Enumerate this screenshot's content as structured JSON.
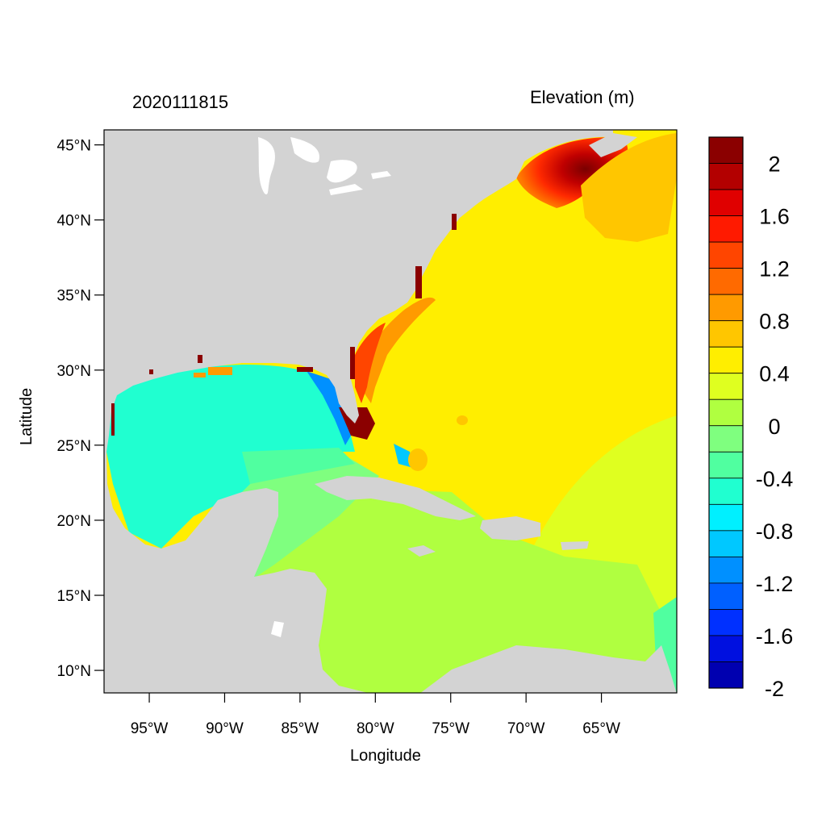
{
  "header": {
    "timestamp": "2020111815",
    "variable": "Elevation (m)"
  },
  "axes": {
    "xlabel": "Longitude",
    "ylabel": "Latitude",
    "lat_ticks": [
      {
        "label": "45°N",
        "value": 45
      },
      {
        "label": "40°N",
        "value": 40
      },
      {
        "label": "35°N",
        "value": 35
      },
      {
        "label": "30°N",
        "value": 30
      },
      {
        "label": "25°N",
        "value": 25
      },
      {
        "label": "20°N",
        "value": 20
      },
      {
        "label": "15°N",
        "value": 15
      },
      {
        "label": "10°N",
        "value": 10
      }
    ],
    "lon_ticks": [
      {
        "label": "95°W",
        "value": -95
      },
      {
        "label": "90°W",
        "value": -90
      },
      {
        "label": "85°W",
        "value": -85
      },
      {
        "label": "80°W",
        "value": -80
      },
      {
        "label": "75°W",
        "value": -75
      },
      {
        "label": "70°W",
        "value": -70
      },
      {
        "label": "65°W",
        "value": -65
      }
    ],
    "lon_range": [
      -98,
      -60
    ],
    "lat_range": [
      8.5,
      46
    ]
  },
  "colorbar": {
    "colors": [
      "#8b0000",
      "#b30000",
      "#e00000",
      "#ff1a00",
      "#ff4500",
      "#ff6a00",
      "#ff9a00",
      "#ffc600",
      "#ffee00",
      "#dfff20",
      "#b0ff40",
      "#7fff7f",
      "#50ffa0",
      "#20ffd0",
      "#00f0ff",
      "#00c8ff",
      "#0090ff",
      "#0060ff",
      "#0030ff",
      "#0010e0",
      "#0000b0"
    ],
    "labels": [
      "2",
      "1.6",
      "1.2",
      "0.8",
      "0.4",
      "0",
      "-0.4",
      "-0.8",
      "-1.2",
      "-1.6",
      "-2"
    ]
  },
  "map_colors": {
    "land": "#d3d3d3",
    "water_lakes": "#ffffff"
  }
}
